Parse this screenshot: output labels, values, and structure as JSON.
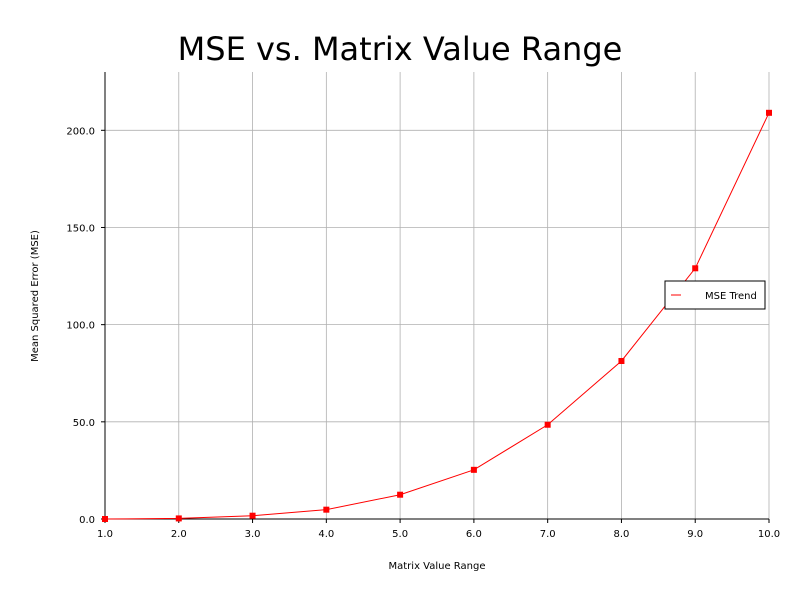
{
  "chart_data": {
    "type": "line",
    "title": "MSE vs. Matrix Value Range",
    "xlabel": "Matrix Value Range",
    "ylabel": "Mean Squared Error (MSE)",
    "x": [
      1,
      2,
      3,
      4,
      5,
      6,
      7,
      8,
      9,
      10
    ],
    "xlim": [
      1,
      10
    ],
    "ylim": [
      0,
      230
    ],
    "xticks": [
      1,
      2,
      3,
      4,
      5,
      6,
      7,
      8,
      9,
      10
    ],
    "xtick_labels": [
      "1.0",
      "2.0",
      "3.0",
      "4.0",
      "5.0",
      "6.0",
      "7.0",
      "8.0",
      "9.0",
      "10.0"
    ],
    "yticks": [
      0,
      50,
      100,
      150,
      200
    ],
    "ytick_labels": [
      "0.0",
      "50.0",
      "100.0",
      "150.0",
      "200.0"
    ],
    "grid": true,
    "legend_position": "right",
    "series": [
      {
        "name": "MSE Trend",
        "color": "#ff0000",
        "marker": "square",
        "values": [
          0.0,
          0.3,
          1.7,
          4.8,
          12.5,
          25.3,
          48.5,
          81.3,
          129.0,
          209.0
        ]
      }
    ]
  }
}
